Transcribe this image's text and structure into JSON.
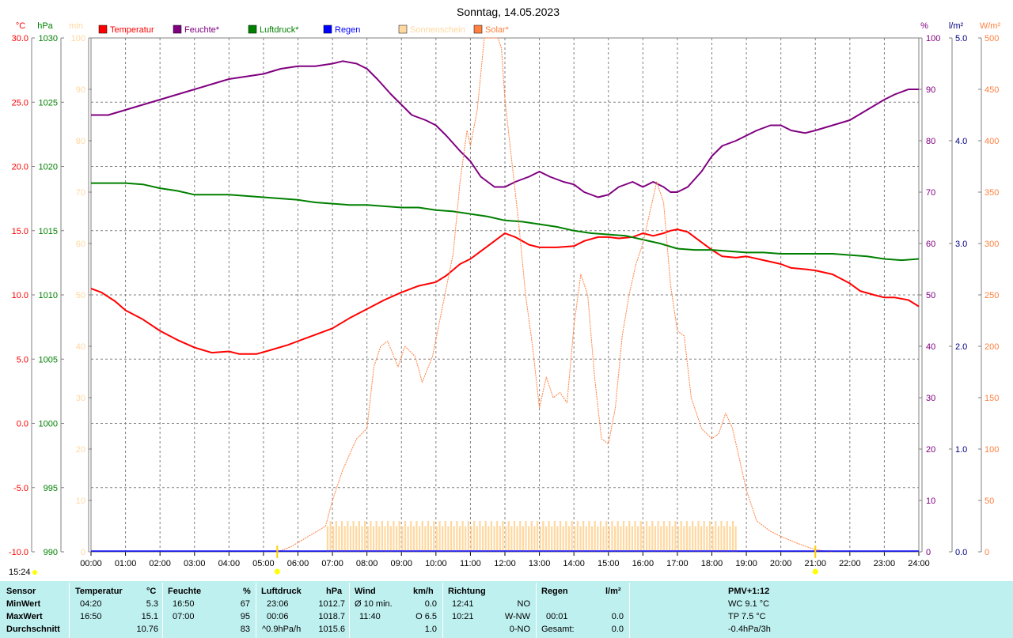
{
  "chart_data": {
    "type": "line",
    "title": "Sonntag, 14.05.2023",
    "x_ticks": [
      "00:00",
      "01:00",
      "02:00",
      "03:00",
      "04:00",
      "05:00",
      "06:00",
      "07:00",
      "08:00",
      "09:00",
      "10:00",
      "11:00",
      "12:00",
      "13:00",
      "14:00",
      "15:00",
      "16:00",
      "17:00",
      "18:00",
      "19:00",
      "20:00",
      "21:00",
      "22:00",
      "23:00",
      "24:00"
    ],
    "axes": {
      "temp": {
        "unit": "°C",
        "range": [
          -10,
          30
        ],
        "ticks": [
          "30.0",
          "25.0",
          "20.0",
          "15.0",
          "10.0",
          "5.0",
          "0.0",
          "-5.0",
          "-10.0"
        ],
        "color": "#ff0000"
      },
      "press": {
        "unit": "hPa",
        "range": [
          990,
          1030
        ],
        "ticks": [
          "1030",
          "1025",
          "1020",
          "1015",
          "1010",
          "1005",
          "1000",
          "995",
          "990"
        ],
        "color": "#008000"
      },
      "sun": {
        "unit": "min",
        "range": [
          0,
          100
        ],
        "ticks": [
          "100",
          "90",
          "80",
          "70",
          "60",
          "50",
          "40",
          "30",
          "20",
          "10",
          "0"
        ],
        "color": "#ffd8a0"
      },
      "hum": {
        "unit": "%",
        "range": [
          0,
          100
        ],
        "ticks": [
          "100",
          "90",
          "80",
          "70",
          "60",
          "50",
          "40",
          "30",
          "20",
          "10",
          "0"
        ],
        "color": "#800080"
      },
      "rain": {
        "unit": "l/m²",
        "range": [
          0,
          5
        ],
        "ticks": [
          "5.0",
          "4.0",
          "3.0",
          "2.0",
          "1.0",
          "0.0"
        ],
        "color": "#000080"
      },
      "solar": {
        "unit": "W/m²",
        "range": [
          0,
          500
        ],
        "ticks": [
          "500",
          "450",
          "400",
          "350",
          "300",
          "250",
          "200",
          "150",
          "100",
          "50",
          "0"
        ],
        "color": "#ff8040"
      }
    },
    "legend": [
      {
        "name": "Temperatur",
        "color": "#ff0000"
      },
      {
        "name": "Feuchte*",
        "color": "#800080"
      },
      {
        "name": "Luftdruck*",
        "color": "#008000"
      },
      {
        "name": "Regen",
        "color": "#0000ff"
      },
      {
        "name": "Sonnenschein",
        "color": "#ffd8a0"
      },
      {
        "name": "Solar*",
        "color": "#ff8040"
      }
    ],
    "series": [
      {
        "name": "Temperatur",
        "axis": "temp",
        "color": "#ff0000",
        "x": [
          0,
          0.3,
          0.7,
          1,
          1.5,
          2,
          2.5,
          3,
          3.5,
          4,
          4.3,
          4.8,
          5.2,
          5.7,
          6,
          6.5,
          7,
          7.5,
          8,
          8.5,
          9,
          9.5,
          10,
          10.3,
          10.7,
          11,
          11.3,
          11.7,
          12,
          12.3,
          12.7,
          13,
          13.5,
          14,
          14.3,
          14.7,
          15,
          15.3,
          15.7,
          16,
          16.3,
          16.6,
          16.8,
          17,
          17.3,
          17.7,
          18,
          18.3,
          18.7,
          19,
          19.5,
          20,
          20.3,
          20.7,
          21,
          21.5,
          22,
          22.3,
          22.7,
          23,
          23.3,
          23.7,
          24
        ],
        "y": [
          10.5,
          10.2,
          9.5,
          8.8,
          8.1,
          7.2,
          6.5,
          5.9,
          5.5,
          5.6,
          5.4,
          5.4,
          5.7,
          6.1,
          6.4,
          6.9,
          7.4,
          8.2,
          8.9,
          9.6,
          10.2,
          10.7,
          11,
          11.5,
          12.4,
          12.8,
          13.4,
          14.2,
          14.8,
          14.5,
          13.9,
          13.7,
          13.7,
          13.8,
          14.2,
          14.5,
          14.5,
          14.4,
          14.5,
          14.8,
          14.6,
          14.8,
          15,
          15.1,
          14.9,
          14.1,
          13.5,
          13,
          12.9,
          13,
          12.7,
          12.4,
          12.1,
          12,
          11.9,
          11.6,
          10.9,
          10.3,
          10,
          9.8,
          9.8,
          9.6,
          9.1
        ]
      },
      {
        "name": "Feuchte*",
        "axis": "hum",
        "color": "#800080",
        "x": [
          0,
          0.5,
          1,
          1.5,
          2,
          2.5,
          3,
          3.5,
          4,
          4.5,
          5,
          5.5,
          6,
          6.5,
          7,
          7.3,
          7.7,
          8,
          8.3,
          8.7,
          9,
          9.3,
          9.7,
          10,
          10.3,
          10.7,
          11,
          11.3,
          11.7,
          12,
          12.3,
          12.7,
          13,
          13.3,
          13.7,
          14,
          14.3,
          14.7,
          15,
          15.3,
          15.7,
          16,
          16.3,
          16.6,
          16.8,
          17,
          17.3,
          17.7,
          18,
          18.3,
          18.7,
          19,
          19.3,
          19.7,
          20,
          20.3,
          20.7,
          21,
          21.5,
          22,
          22.5,
          23,
          23.3,
          23.7,
          24
        ],
        "y": [
          85,
          85,
          86,
          87,
          88,
          89,
          90,
          91,
          92,
          92.5,
          93,
          94,
          94.5,
          94.5,
          95,
          95.5,
          95,
          94,
          92,
          89,
          87,
          85,
          84,
          83,
          81,
          78,
          76,
          73,
          71,
          71,
          72,
          73,
          74,
          73,
          72,
          71.5,
          70,
          69,
          69.5,
          71,
          72,
          71,
          72,
          71,
          70,
          70,
          71,
          74,
          77,
          79,
          80,
          81,
          82,
          83,
          83,
          82,
          81.5,
          82,
          83,
          84,
          86,
          88,
          89,
          90,
          90
        ]
      },
      {
        "name": "Luftdruck*",
        "axis": "press",
        "color": "#008000",
        "x": [
          0,
          0.5,
          1,
          1.5,
          2,
          2.5,
          3,
          3.5,
          4,
          4.5,
          5,
          5.5,
          6,
          6.5,
          7,
          7.5,
          8,
          8.5,
          9,
          9.5,
          10,
          10.5,
          11,
          11.5,
          12,
          12.5,
          13,
          13.5,
          14,
          14.5,
          15,
          15.5,
          16,
          16.5,
          17,
          17.5,
          18,
          18.5,
          19,
          19.5,
          20,
          20.5,
          21,
          21.5,
          22,
          22.5,
          23,
          23.5,
          24
        ],
        "y": [
          1018.7,
          1018.7,
          1018.7,
          1018.6,
          1018.3,
          1018.1,
          1017.8,
          1017.8,
          1017.8,
          1017.7,
          1017.6,
          1017.5,
          1017.4,
          1017.2,
          1017.1,
          1017,
          1017,
          1016.9,
          1016.8,
          1016.8,
          1016.6,
          1016.5,
          1016.3,
          1016.1,
          1015.8,
          1015.7,
          1015.5,
          1015.3,
          1015,
          1014.8,
          1014.7,
          1014.6,
          1014.3,
          1014,
          1013.6,
          1013.5,
          1013.5,
          1013.4,
          1013.3,
          1013.3,
          1013.2,
          1013.2,
          1013.2,
          1013.2,
          1013.1,
          1013,
          1012.8,
          1012.7,
          1012.8
        ]
      },
      {
        "name": "Solar*",
        "axis": "solar",
        "color": "#ff8040",
        "x": [
          5.4,
          5.8,
          6.3,
          6.8,
          7,
          7.3,
          7.7,
          8,
          8.2,
          8.4,
          8.6,
          8.9,
          9.1,
          9.4,
          9.6,
          9.9,
          10.2,
          10.5,
          10.7,
          10.9,
          11,
          11.2,
          11.4,
          11.6,
          11.8,
          11.9,
          12,
          12.2,
          12.4,
          12.6,
          12.8,
          13,
          13.2,
          13.4,
          13.6,
          13.8,
          14,
          14.2,
          14.4,
          14.6,
          14.8,
          15,
          15.2,
          15.4,
          15.6,
          15.8,
          16,
          16.2,
          16.4,
          16.6,
          16.8,
          17,
          17.2,
          17.4,
          17.7,
          18,
          18.2,
          18.4,
          18.6,
          18.8,
          19,
          19.3,
          19.7,
          20,
          20.5,
          21,
          21.5
        ],
        "y": [
          0,
          5,
          15,
          25,
          50,
          80,
          110,
          120,
          180,
          200,
          205,
          180,
          200,
          190,
          165,
          190,
          240,
          290,
          360,
          410,
          395,
          430,
          500,
          500,
          500,
          490,
          440,
          380,
          320,
          250,
          200,
          140,
          170,
          150,
          155,
          145,
          220,
          270,
          250,
          170,
          110,
          105,
          140,
          210,
          250,
          280,
          300,
          330,
          360,
          340,
          260,
          215,
          210,
          150,
          120,
          110,
          115,
          135,
          120,
          90,
          60,
          30,
          20,
          15,
          8,
          2,
          0
        ]
      }
    ],
    "sunshine_bars": {
      "name": "Sonnenschein",
      "start": "06:50",
      "end": "18:45",
      "values_min": [
        5,
        6
      ]
    },
    "markers_bottom": [
      "05:24",
      "21:00"
    ],
    "x_marker_label": "15:24"
  },
  "summary": {
    "header": {
      "sensor": "Sensor",
      "temperatur": "Temperatur",
      "temp_unit": "°C",
      "feuchte": "Feuchte",
      "feuchte_unit": "%",
      "luftdruck": "Luftdruck",
      "luftdruck_unit": "hPa",
      "wind": "Wind",
      "wind_unit": "km/h",
      "richtung": "Richtung",
      "regen": "Regen",
      "regen_unit": "l/m²",
      "pmv": "PMV+1:12"
    },
    "rows": [
      {
        "label": "MinWert",
        "t_time": "04:20",
        "t_val": "5.3",
        "h_time": "16:50",
        "h_val": "67",
        "p_time": "23:06",
        "p_val": "1012.7",
        "w_label": "Ø 10 min.",
        "w_val": "0.0",
        "r_time": "12:41",
        "r_val": "NO",
        "rain_time": "",
        "rain_val": "",
        "pmv": "WC 9.1 °C"
      },
      {
        "label": "MaxWert",
        "t_time": "16:50",
        "t_val": "15.1",
        "h_time": "07:00",
        "h_val": "95",
        "p_time": "00:06",
        "p_val": "1018.7",
        "w_label": "11:40",
        "w_val": "O 6.5",
        "r_time": "10:21",
        "r_val": "W-NW",
        "rain_time": "00:01",
        "rain_val": "0.0",
        "pmv": "TP 7.5 °C"
      },
      {
        "label": "Durchschnitt",
        "t_time": "",
        "t_val": "10.76",
        "h_time": "",
        "h_val": "83",
        "p_time": "^0.9hPa/h",
        "p_val": "1015.6",
        "w_label": "",
        "w_val": "1.0",
        "r_time": "",
        "r_val": "0-NO",
        "rain_time": "Gesamt:",
        "rain_val": "0.0",
        "pmv": "-0.4hPa/3h"
      }
    ]
  }
}
